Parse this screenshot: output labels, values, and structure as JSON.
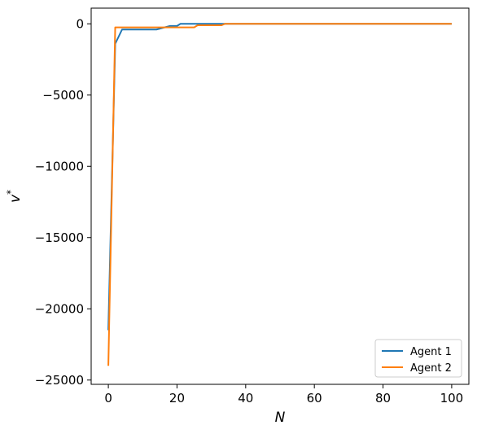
{
  "chart_data": {
    "type": "line",
    "title": "",
    "xlabel": "N",
    "ylabel": "v*",
    "xlim": [
      -5,
      105
    ],
    "ylim": [
      -25300,
      1100
    ],
    "xticks": [
      0,
      20,
      40,
      60,
      80,
      100
    ],
    "xtick_labels": [
      "0",
      "20",
      "40",
      "60",
      "80",
      "100"
    ],
    "yticks": [
      0,
      -5000,
      -10000,
      -15000,
      -20000,
      -25000
    ],
    "ytick_labels": [
      "0",
      "−5000",
      "−10000",
      "−15000",
      "−20000",
      "−25000"
    ],
    "grid": false,
    "legend_position": "lower-right",
    "series": [
      {
        "name": "Agent 1",
        "color": "#1f77b4",
        "x": [
          0,
          2,
          4,
          14,
          18,
          20,
          21,
          30,
          34,
          40,
          60,
          80,
          100
        ],
        "y": [
          -21500,
          -1400,
          -400,
          -400,
          -150,
          -150,
          0,
          0,
          0,
          0,
          0,
          0,
          0
        ]
      },
      {
        "name": "Agent 2",
        "color": "#ff7f0e",
        "x": [
          0,
          2,
          3,
          16,
          25,
          26,
          33,
          34,
          40,
          60,
          80,
          100
        ],
        "y": [
          -24000,
          -250,
          -250,
          -250,
          -250,
          -100,
          -100,
          0,
          0,
          0,
          0,
          0
        ]
      }
    ]
  }
}
